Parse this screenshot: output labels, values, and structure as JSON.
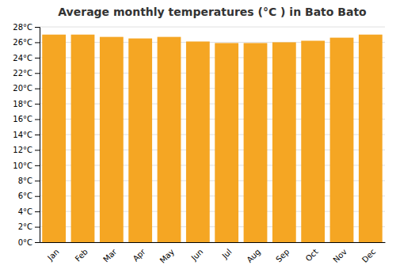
{
  "chart_data": {
    "type": "bar",
    "title": "Average monthly temperatures (°C ) in Bato Bato",
    "categories": [
      "Jan",
      "Feb",
      "Mar",
      "Apr",
      "May",
      "Jun",
      "Jul",
      "Aug",
      "Sep",
      "Oct",
      "Nov",
      "Dec"
    ],
    "values": [
      27.0,
      27.0,
      26.7,
      26.5,
      26.7,
      26.1,
      25.9,
      25.9,
      26.0,
      26.2,
      26.6,
      27.0
    ],
    "color": "#F5A623",
    "ylim": [
      0,
      28
    ],
    "yticks": [
      {
        "value": 0,
        "label": "0°C"
      },
      {
        "value": 2,
        "label": "2°C"
      },
      {
        "value": 4,
        "label": "4°C"
      },
      {
        "value": 6,
        "label": "6°C"
      },
      {
        "value": 8,
        "label": "8°C"
      },
      {
        "value": 10,
        "label": "10°C"
      },
      {
        "value": 12,
        "label": "12°C"
      },
      {
        "value": 14,
        "label": "14°C"
      },
      {
        "value": 16,
        "label": "16°C"
      },
      {
        "value": 18,
        "label": "18°C"
      },
      {
        "value": 20,
        "label": "20°C"
      },
      {
        "value": 22,
        "label": "22°C"
      },
      {
        "value": 24,
        "label": "24°C"
      },
      {
        "value": 26,
        "label": "26°C"
      },
      {
        "value": 28,
        "label": "28°C"
      }
    ],
    "grid": true
  }
}
